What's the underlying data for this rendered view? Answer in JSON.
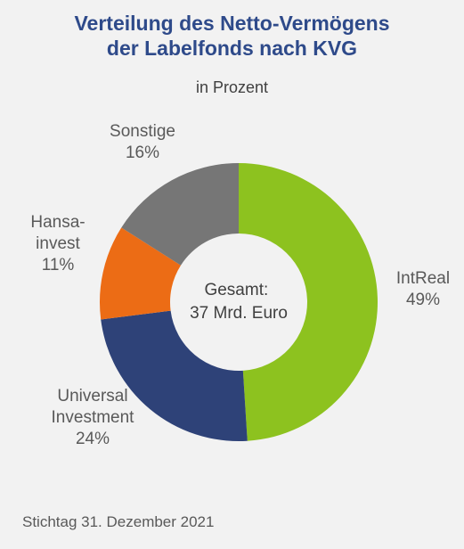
{
  "chart_data": {
    "type": "pie",
    "title_lines": [
      "Verteilung des Netto-Vermögens",
      "der Labelfonds nach KVG"
    ],
    "subtitle": "in Prozent",
    "center_label": [
      "Gesamt:",
      "37 Mrd. Euro"
    ],
    "slices": [
      {
        "name_lines": [
          "IntReal"
        ],
        "value": 49,
        "value_label": "49%",
        "color": "#8dc21f"
      },
      {
        "name_lines": [
          "Universal",
          "Investment"
        ],
        "value": 24,
        "value_label": "24%",
        "color": "#2e4278"
      },
      {
        "name_lines": [
          "Hansa-",
          "invest"
        ],
        "value": 11,
        "value_label": "11%",
        "color": "#ec6c15"
      },
      {
        "name_lines": [
          "Sonstige"
        ],
        "value": 16,
        "value_label": "16%",
        "color": "#767676"
      }
    ]
  },
  "footer": "Stichtag 31. Dezember 2021"
}
